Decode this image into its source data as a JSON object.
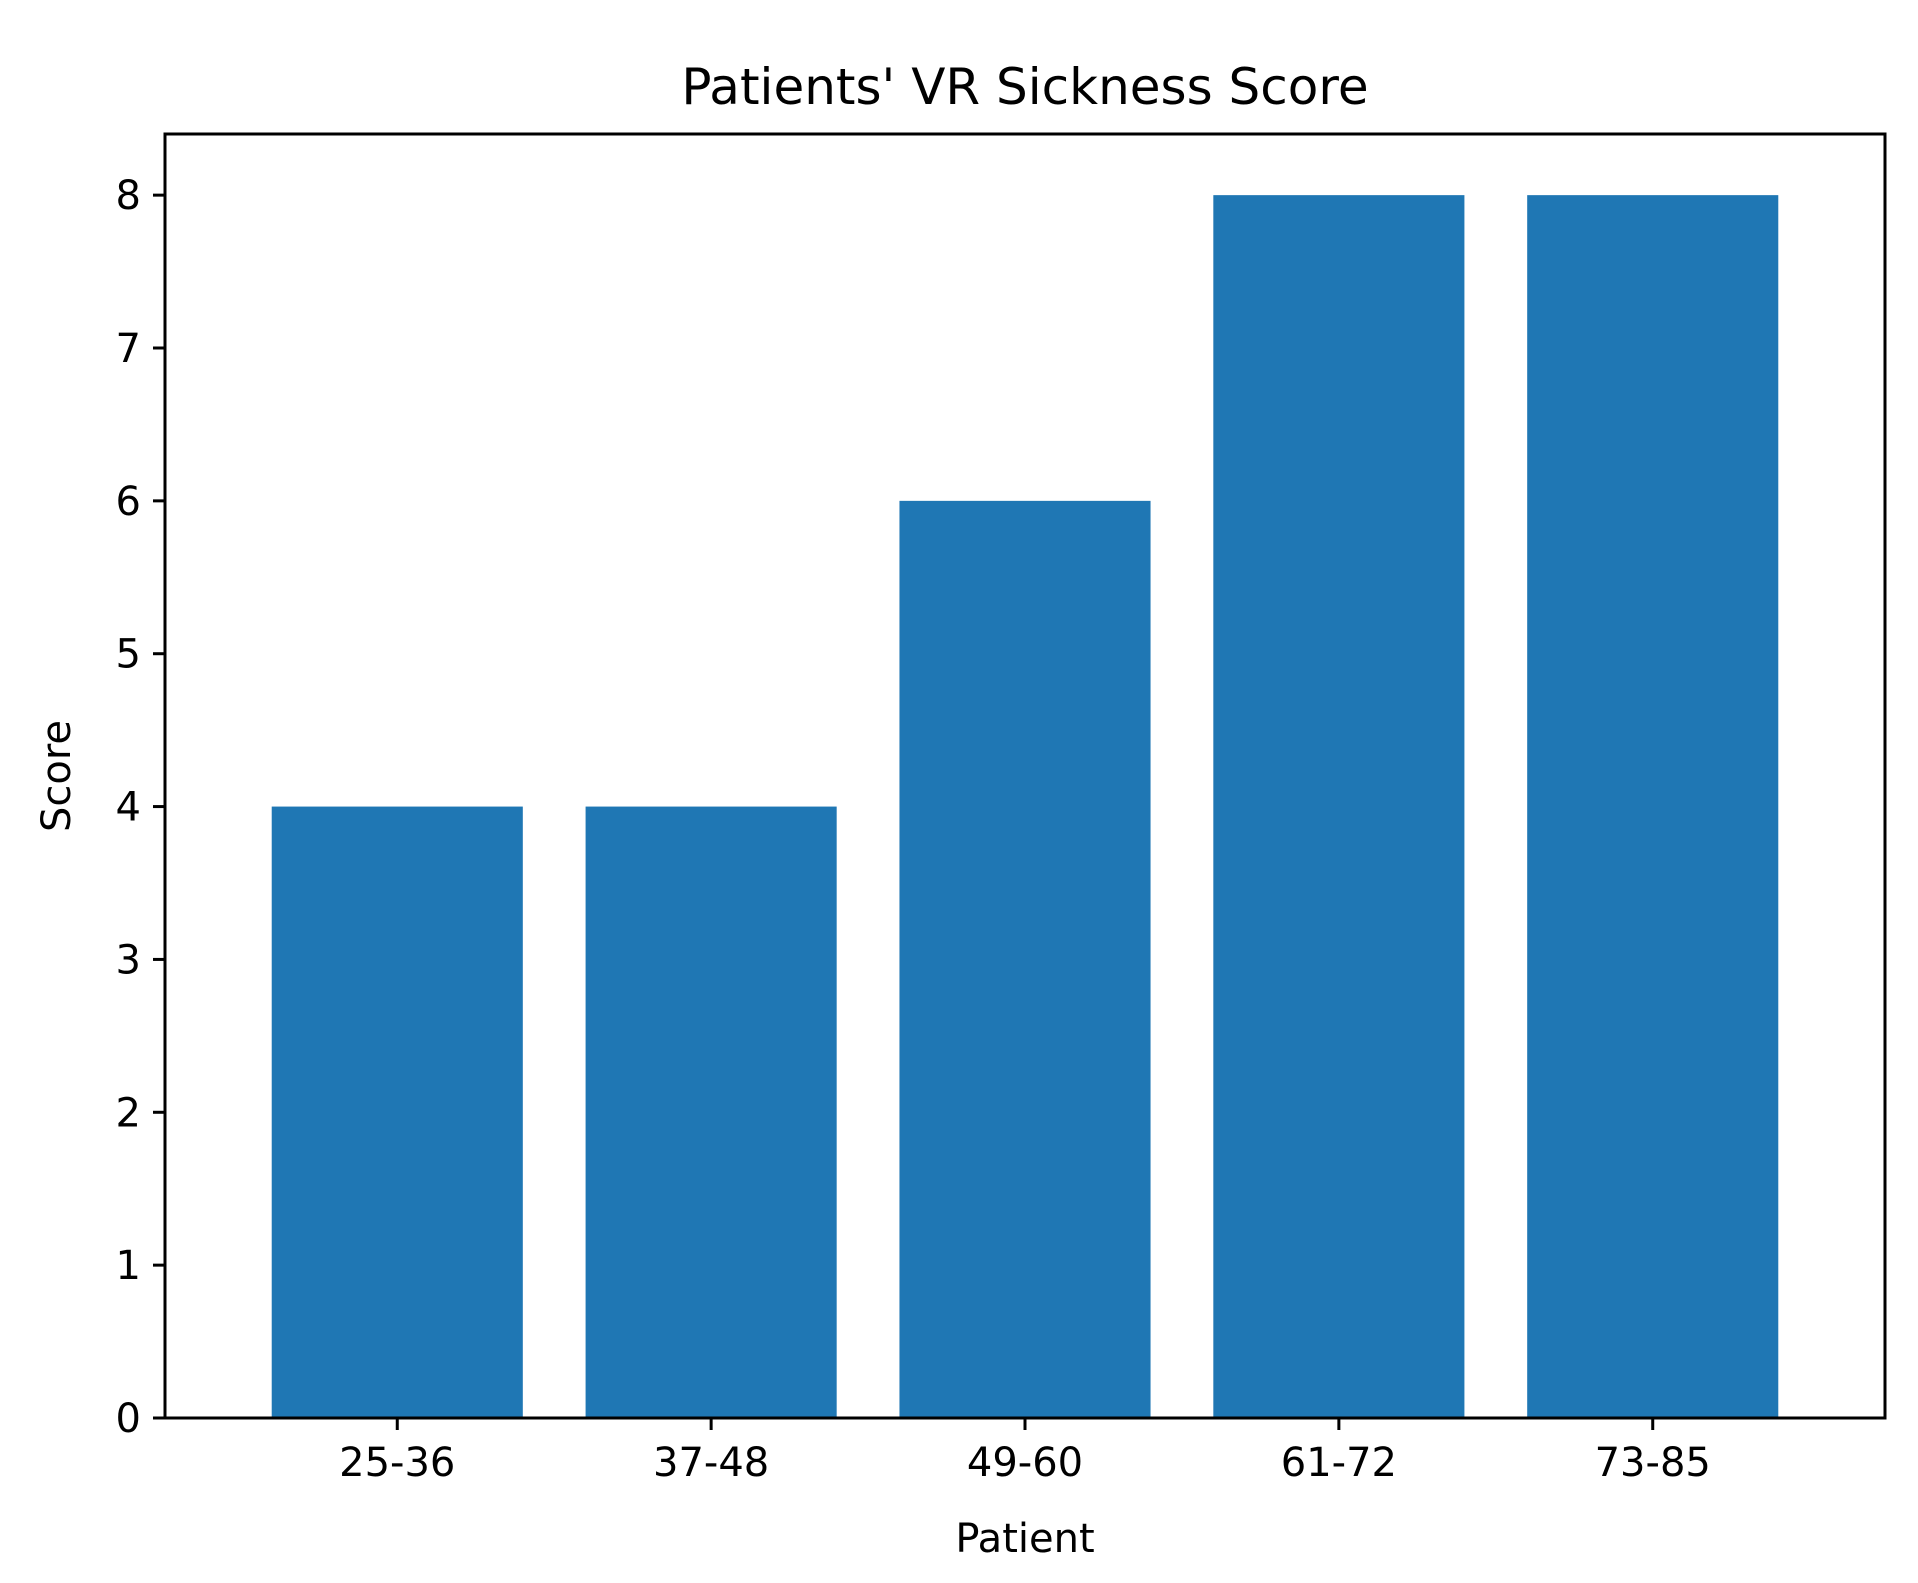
{
  "chart_data": {
    "type": "bar",
    "title": "Patients' VR Sickness Score",
    "xlabel": "Patient",
    "ylabel": "Score",
    "categories": [
      "25-36",
      "37-48",
      "49-60",
      "61-72",
      "73-85"
    ],
    "values": [
      4,
      4,
      6,
      8,
      8
    ],
    "ylim": [
      0,
      8.4
    ],
    "yticks": [
      0,
      1,
      2,
      3,
      4,
      5,
      6,
      7,
      8
    ],
    "grid": false,
    "bar_color": "#1f77b4"
  }
}
